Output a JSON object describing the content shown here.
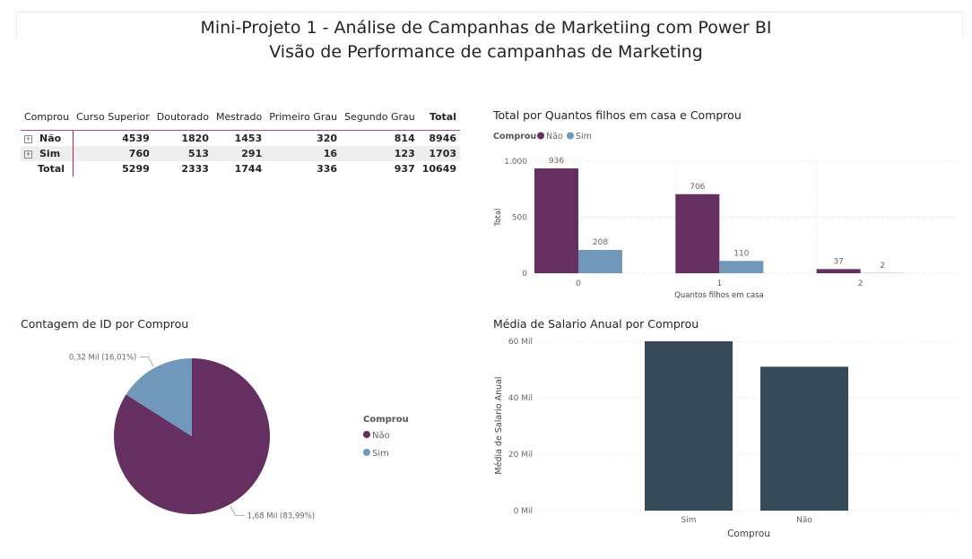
{
  "header": {
    "title": "Mini-Projeto 1 - Análise de Campanhas de Marketiing com Power BI",
    "subtitle": "Visão de Performance de campanhas de Marketing"
  },
  "colors": {
    "nao": "#662f62",
    "sim": "#6f98bb",
    "dark": "#344a58",
    "accent": "#b3245a"
  },
  "chart_data": [
    {
      "type": "table",
      "title": "",
      "row_header": "Comprou",
      "columns": [
        "Curso Superior",
        "Doutorado",
        "Mestrado",
        "Primeiro Grau",
        "Segundo Grau",
        "Total"
      ],
      "rows": [
        {
          "label": "Não",
          "values": [
            "4539",
            "1820",
            "1453",
            "320",
            "814",
            "8946"
          ]
        },
        {
          "label": "Sim",
          "values": [
            "760",
            "513",
            "291",
            "16",
            "123",
            "1703"
          ]
        },
        {
          "label": "Total",
          "values": [
            "5299",
            "2333",
            "1744",
            "336",
            "937",
            "10649"
          ]
        }
      ]
    },
    {
      "type": "bar",
      "title": "Total por Quantos filhos em casa e Comprou",
      "legend_title": "Comprou",
      "legend": [
        "Não",
        "Sim"
      ],
      "categories": [
        "0",
        "1",
        "2"
      ],
      "series": [
        {
          "name": "Não",
          "values": [
            936,
            706,
            37
          ],
          "labels": [
            "936",
            "706",
            "37"
          ]
        },
        {
          "name": "Sim",
          "values": [
            208,
            110,
            2
          ],
          "labels": [
            "208",
            "110",
            "2"
          ]
        }
      ],
      "xlabel": "Quantos filhos em casa",
      "ylabel": "Total",
      "ylim": [
        0,
        1000
      ],
      "yticks": [
        0,
        500,
        1000
      ],
      "ytick_labels": [
        "0",
        "500",
        "1.000"
      ],
      "grid": true
    },
    {
      "type": "pie",
      "title": "Contagem de ID por Comprou",
      "legend_title": "Comprou",
      "legend": [
        "Não",
        "Sim"
      ],
      "slices": [
        {
          "name": "Não",
          "value": 8399,
          "label": "1,68 Mil (83,99%)"
        },
        {
          "name": "Sim",
          "value": 1601,
          "label": "0,32 Mil (16,01%)"
        }
      ]
    },
    {
      "type": "bar",
      "title": "Média de Salario Anual por Comprou",
      "categories": [
        "Sim",
        "Não"
      ],
      "values": [
        60000,
        51000
      ],
      "xlabel": "Comprou",
      "ylabel": "Média de Salario Anual",
      "ylim": [
        0,
        60000
      ],
      "yticks": [
        0,
        20000,
        40000,
        60000
      ],
      "ytick_labels": [
        "0 Mil",
        "20 Mil",
        "40 Mil",
        "60 Mil"
      ],
      "grid": true
    }
  ]
}
